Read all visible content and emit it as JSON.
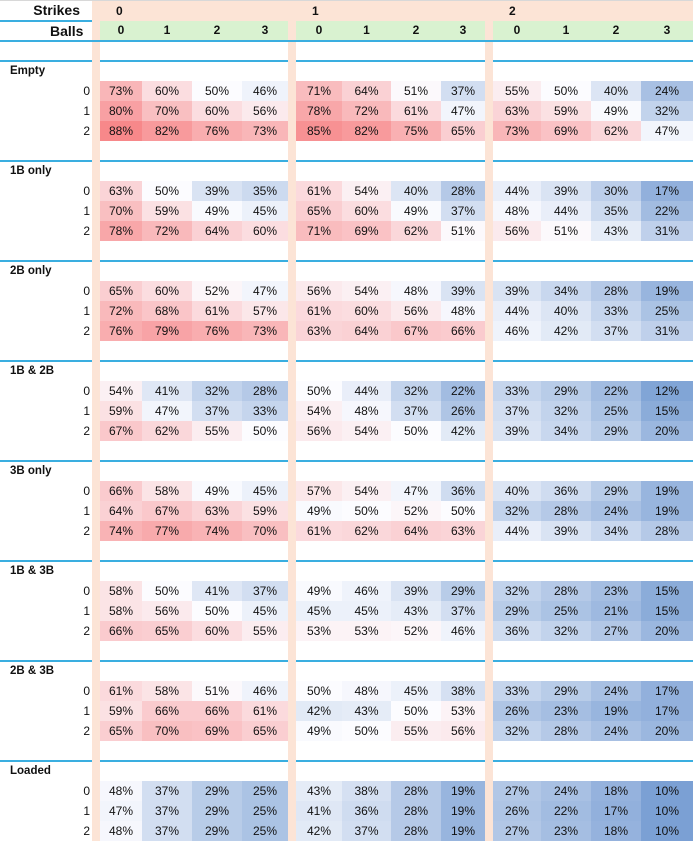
{
  "header": {
    "strikes_label": "Strikes",
    "balls_label": "Balls",
    "strikes": [
      "0",
      "1",
      "2"
    ],
    "balls": [
      "0",
      "1",
      "2",
      "3"
    ]
  },
  "outs": [
    "0",
    "1",
    "2"
  ],
  "colors": {
    "low": "#7ba0d4",
    "mid": "#fcfcff",
    "high": "#f7888a",
    "strip": "#fce4d6",
    "balls_bg": "#d9f2d0",
    "rule": "#3aaee0"
  },
  "scale": {
    "min": 10,
    "mid": 50,
    "max": 88
  },
  "groups": [
    {
      "label": "Empty",
      "rows": [
        [
          "73%",
          "60%",
          "50%",
          "46%",
          "71%",
          "64%",
          "51%",
          "37%",
          "55%",
          "50%",
          "40%",
          "24%"
        ],
        [
          "80%",
          "70%",
          "60%",
          "56%",
          "78%",
          "72%",
          "61%",
          "47%",
          "63%",
          "59%",
          "49%",
          "32%"
        ],
        [
          "88%",
          "82%",
          "76%",
          "73%",
          "85%",
          "82%",
          "75%",
          "65%",
          "73%",
          "69%",
          "62%",
          "47%"
        ]
      ]
    },
    {
      "label": "1B only",
      "rows": [
        [
          "63%",
          "50%",
          "39%",
          "35%",
          "61%",
          "54%",
          "40%",
          "28%",
          "44%",
          "39%",
          "30%",
          "17%"
        ],
        [
          "70%",
          "59%",
          "49%",
          "45%",
          "65%",
          "60%",
          "49%",
          "37%",
          "48%",
          "44%",
          "35%",
          "22%"
        ],
        [
          "78%",
          "72%",
          "64%",
          "60%",
          "71%",
          "69%",
          "62%",
          "51%",
          "56%",
          "51%",
          "43%",
          "31%"
        ]
      ]
    },
    {
      "label": "2B only",
      "rows": [
        [
          "65%",
          "60%",
          "52%",
          "47%",
          "56%",
          "54%",
          "48%",
          "39%",
          "39%",
          "34%",
          "28%",
          "19%"
        ],
        [
          "72%",
          "68%",
          "61%",
          "57%",
          "61%",
          "60%",
          "56%",
          "48%",
          "44%",
          "40%",
          "33%",
          "25%"
        ],
        [
          "76%",
          "79%",
          "76%",
          "73%",
          "63%",
          "64%",
          "67%",
          "66%",
          "46%",
          "42%",
          "37%",
          "31%"
        ]
      ]
    },
    {
      "label": "1B & 2B",
      "rows": [
        [
          "54%",
          "41%",
          "32%",
          "28%",
          "50%",
          "44%",
          "32%",
          "22%",
          "33%",
          "29%",
          "22%",
          "12%"
        ],
        [
          "59%",
          "47%",
          "37%",
          "33%",
          "54%",
          "48%",
          "37%",
          "26%",
          "37%",
          "32%",
          "25%",
          "15%"
        ],
        [
          "67%",
          "62%",
          "55%",
          "50%",
          "56%",
          "54%",
          "50%",
          "42%",
          "39%",
          "34%",
          "29%",
          "20%"
        ]
      ]
    },
    {
      "label": "3B only",
      "rows": [
        [
          "66%",
          "58%",
          "49%",
          "45%",
          "57%",
          "54%",
          "47%",
          "36%",
          "40%",
          "36%",
          "29%",
          "19%"
        ],
        [
          "64%",
          "67%",
          "63%",
          "59%",
          "49%",
          "50%",
          "52%",
          "50%",
          "32%",
          "28%",
          "24%",
          "19%"
        ],
        [
          "74%",
          "77%",
          "74%",
          "70%",
          "61%",
          "62%",
          "64%",
          "63%",
          "44%",
          "39%",
          "34%",
          "28%"
        ]
      ]
    },
    {
      "label": "1B & 3B",
      "rows": [
        [
          "58%",
          "50%",
          "41%",
          "37%",
          "49%",
          "46%",
          "39%",
          "29%",
          "32%",
          "28%",
          "23%",
          "15%"
        ],
        [
          "58%",
          "56%",
          "50%",
          "45%",
          "45%",
          "45%",
          "43%",
          "37%",
          "29%",
          "25%",
          "21%",
          "15%"
        ],
        [
          "66%",
          "65%",
          "60%",
          "55%",
          "53%",
          "53%",
          "52%",
          "46%",
          "36%",
          "32%",
          "27%",
          "20%"
        ]
      ]
    },
    {
      "label": "2B & 3B",
      "rows": [
        [
          "61%",
          "58%",
          "51%",
          "46%",
          "50%",
          "48%",
          "45%",
          "38%",
          "33%",
          "29%",
          "24%",
          "17%"
        ],
        [
          "59%",
          "66%",
          "66%",
          "61%",
          "42%",
          "43%",
          "50%",
          "53%",
          "26%",
          "23%",
          "19%",
          "17%"
        ],
        [
          "65%",
          "70%",
          "69%",
          "65%",
          "49%",
          "50%",
          "55%",
          "56%",
          "32%",
          "28%",
          "24%",
          "20%"
        ]
      ]
    },
    {
      "label": "Loaded",
      "rows": [
        [
          "48%",
          "37%",
          "29%",
          "25%",
          "43%",
          "38%",
          "28%",
          "19%",
          "27%",
          "24%",
          "18%",
          "10%"
        ],
        [
          "47%",
          "37%",
          "29%",
          "25%",
          "41%",
          "36%",
          "28%",
          "19%",
          "26%",
          "22%",
          "17%",
          "10%"
        ],
        [
          "48%",
          "37%",
          "29%",
          "25%",
          "42%",
          "37%",
          "28%",
          "19%",
          "27%",
          "23%",
          "18%",
          "10%"
        ]
      ]
    }
  ]
}
